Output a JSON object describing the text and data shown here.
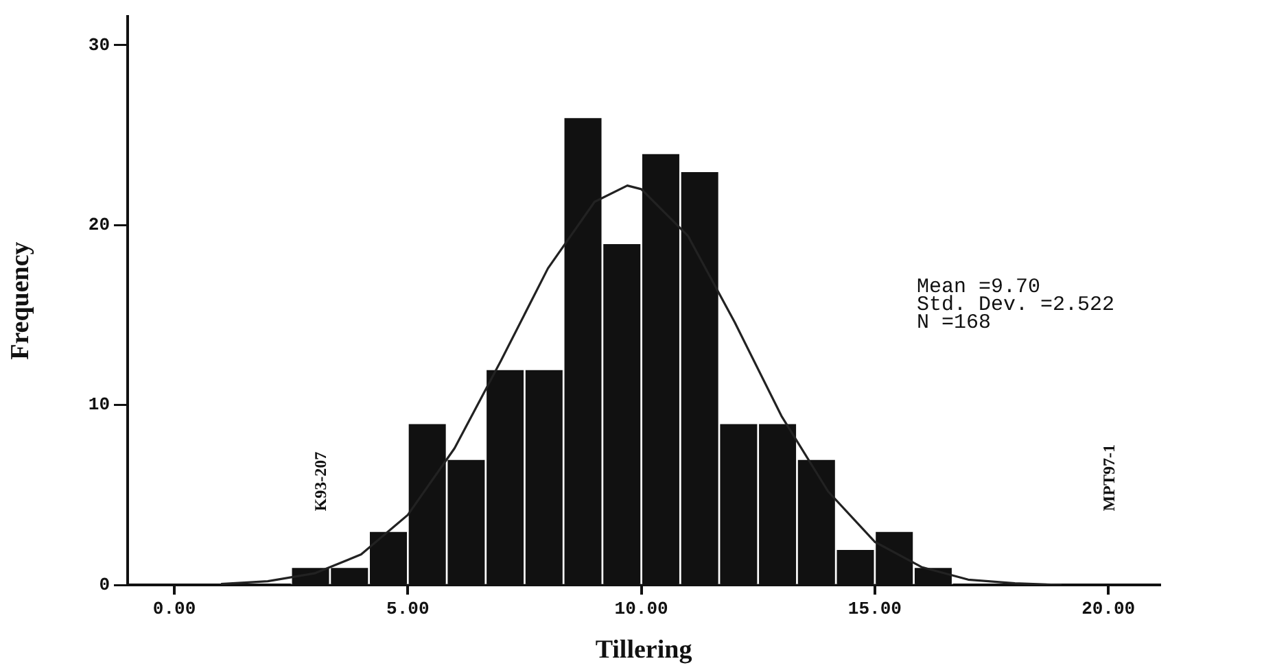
{
  "chart_data": {
    "type": "histogram",
    "xlabel": "Tillering",
    "ylabel": "Frequency",
    "bins": [
      2.5,
      3.333,
      4.167,
      5,
      5.833,
      6.667,
      7.5,
      8.333,
      9.167,
      10,
      10.833,
      11.667,
      12.5,
      13.333,
      14.167,
      15,
      15.833,
      16.667
    ],
    "values": [
      1,
      1,
      3,
      9,
      7,
      12,
      12,
      26,
      19,
      24,
      23,
      9,
      9,
      7,
      2,
      3,
      1
    ],
    "color": "#111111",
    "series": [
      {
        "type": "line",
        "color": "#222222",
        "x": [
          1,
          2,
          3,
          4,
          5,
          6,
          7,
          8,
          9,
          9.7,
          10,
          11,
          12,
          13,
          14,
          15,
          16,
          17,
          18,
          19
        ],
        "values": [
          0.06,
          0.21,
          0.65,
          1.7,
          3.9,
          7.6,
          12.5,
          17.6,
          21.3,
          22.2,
          22,
          19.4,
          14.6,
          9.4,
          5.2,
          2.4,
          1,
          0.3,
          0.1,
          0
        ]
      }
    ],
    "xlim": [
      -1,
      21.1
    ],
    "ylim": [
      0,
      31.6
    ],
    "xticks": [
      {
        "value": 0,
        "label": "0.00"
      },
      {
        "value": 5,
        "label": "5.00"
      },
      {
        "value": 10,
        "label": "10.00"
      },
      {
        "value": 15,
        "label": "15.00"
      },
      {
        "value": 20,
        "label": "20.00"
      }
    ],
    "yticks": [
      0,
      10,
      20,
      30
    ],
    "grid": false,
    "legend": false,
    "annotations": [
      "Mean =9.70",
      "Std. Dev. =2.522",
      "N =168",
      "K93-207",
      "MPT97-1"
    ]
  }
}
